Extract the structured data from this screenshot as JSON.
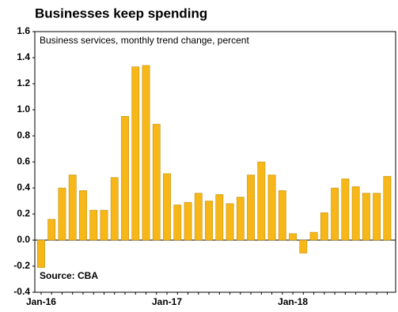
{
  "chart_data": {
    "type": "bar",
    "title": "Businesses keep spending",
    "subtitle": "Business services, monthly trend change, percent",
    "source": "Source: CBA",
    "categories": [
      "Jan-16",
      null,
      null,
      null,
      null,
      null,
      null,
      null,
      null,
      null,
      null,
      null,
      "Jan-17",
      null,
      null,
      null,
      null,
      null,
      null,
      null,
      null,
      null,
      null,
      null,
      "Jan-18",
      null,
      null,
      null,
      null,
      null,
      null,
      null,
      null,
      null
    ],
    "values": [
      -0.21,
      0.16,
      0.4,
      0.5,
      0.38,
      0.23,
      0.23,
      0.48,
      0.95,
      1.33,
      1.34,
      0.89,
      0.51,
      0.27,
      0.29,
      0.36,
      0.3,
      0.35,
      0.28,
      0.33,
      0.5,
      0.6,
      0.5,
      0.38,
      0.05,
      -0.1,
      0.06,
      0.21,
      0.4,
      0.47,
      0.41,
      0.36,
      0.36,
      0.49
    ],
    "color": "#f7b718",
    "ylim": [
      -0.4,
      1.6
    ],
    "yticks": [
      -0.4,
      -0.2,
      {
        "value": 0,
        "label": "0.0"
      },
      0.2,
      0.4,
      0.6,
      0.8,
      {
        "value": 1,
        "label": "1.0"
      },
      1.2,
      1.4,
      1.6
    ]
  }
}
